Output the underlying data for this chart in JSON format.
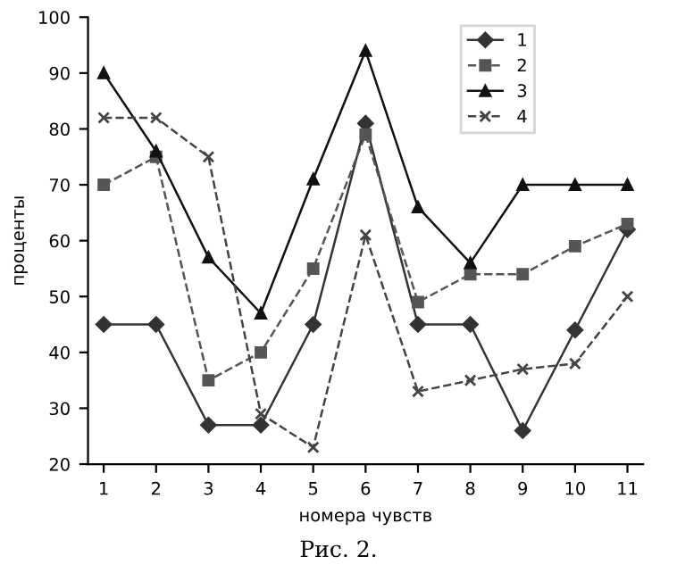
{
  "chart_data": {
    "type": "line",
    "xlabel": "номера чувств",
    "ylabel": "проценты",
    "annotations": [
      "Рис. 2."
    ],
    "categories": [
      "1",
      "2",
      "3",
      "4",
      "5",
      "6",
      "7",
      "8",
      "9",
      "10",
      "11"
    ],
    "ylim": [
      20,
      100
    ],
    "yticks": [
      20,
      30,
      40,
      50,
      60,
      70,
      80,
      90,
      100
    ],
    "grid": false,
    "legend": "top right",
    "series": [
      {
        "name": "1",
        "color": "#333333",
        "marker": "diamond",
        "line_style": "solid",
        "values": [
          45,
          45,
          27,
          27,
          45,
          81,
          45,
          45,
          26,
          44,
          62
        ]
      },
      {
        "name": "2",
        "color": "#555555",
        "marker": "square",
        "line_style": "dashed",
        "values": [
          70,
          75,
          35,
          40,
          55,
          79,
          49,
          54,
          54,
          59,
          63
        ]
      },
      {
        "name": "3",
        "color": "#111111",
        "marker": "triangle",
        "line_style": "solid",
        "values": [
          90,
          76,
          57,
          47,
          71,
          94,
          66,
          56,
          70,
          70,
          70
        ]
      },
      {
        "name": "4",
        "color": "#444444",
        "marker": "cross",
        "line_style": "dashed",
        "values": [
          82,
          82,
          75,
          29,
          23,
          61,
          33,
          35,
          37,
          38,
          50
        ]
      }
    ]
  }
}
